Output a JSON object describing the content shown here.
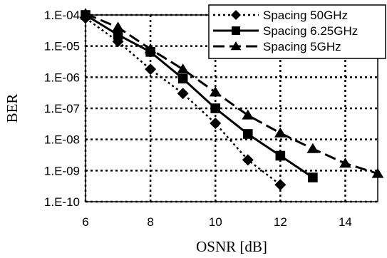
{
  "chart_data": {
    "type": "line",
    "xlabel": "OSNR [dB]",
    "ylabel": "BER",
    "xlim": [
      6,
      15
    ],
    "ylim": [
      1e-10,
      0.0001
    ],
    "yscale": "log",
    "grid": true,
    "legend_position": "top-right",
    "x_ticks": [
      "6",
      "8",
      "10",
      "12",
      "14"
    ],
    "x_tick_values": [
      6,
      8,
      10,
      12,
      14
    ],
    "y_ticks": [
      "1.E-04",
      "1.E-05",
      "1.E-06",
      "1.E-07",
      "1.E-08",
      "1.E-09",
      "1.E-10"
    ],
    "y_tick_values": [
      0.0001,
      1e-05,
      1e-06,
      1e-07,
      1e-08,
      1e-09,
      1e-10
    ],
    "series": [
      {
        "name": "Spacing 50GHz",
        "marker": "diamond",
        "line_style": "dotted",
        "color": "#000000",
        "x": [
          6,
          7,
          8,
          9,
          10,
          11,
          12
        ],
        "y": [
          8e-05,
          1.4e-05,
          1.8e-06,
          3e-07,
          3.3e-08,
          2.2e-09,
          3.5e-10
        ]
      },
      {
        "name": "Spacing 6.25GHz",
        "marker": "square",
        "line_style": "solid",
        "color": "#000000",
        "x": [
          6,
          7,
          8,
          9,
          10,
          11,
          12,
          13
        ],
        "y": [
          0.0001,
          2.3e-05,
          6.5e-06,
          9e-07,
          1e-07,
          1.5e-08,
          3e-09,
          6e-10
        ]
      },
      {
        "name": "Spacing 5GHz",
        "marker": "triangle",
        "line_style": "dashed",
        "color": "#000000",
        "x": [
          6,
          7,
          8,
          9,
          10,
          11,
          12,
          13,
          14,
          15
        ],
        "y": [
          0.00011,
          4e-05,
          8e-06,
          1.8e-06,
          3.3e-07,
          6e-08,
          1.6e-08,
          5e-09,
          1.7e-09,
          8e-10
        ]
      }
    ]
  }
}
